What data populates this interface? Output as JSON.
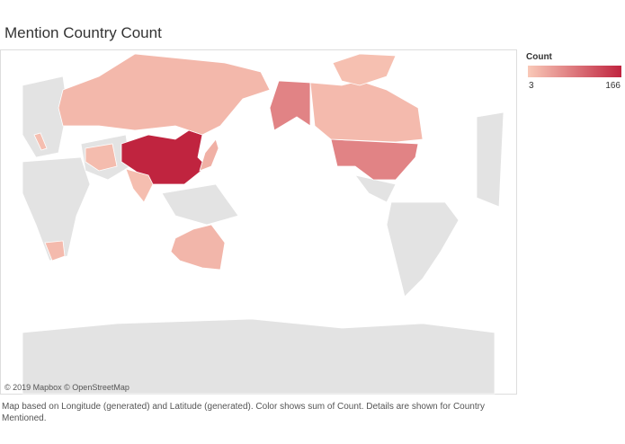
{
  "chart_data": {
    "type": "map",
    "title": "Mention Country Count",
    "legend": {
      "title": "Count",
      "min": 3,
      "max": 166,
      "low_color": "#f9c9b8",
      "high_color": "#c0243f"
    },
    "values": [
      166,
      72,
      72,
      20,
      18,
      22,
      28,
      14,
      18,
      14,
      12,
      16
    ],
    "attribution": "© 2019 Mapbox © OpenStreetMap",
    "caption": "Map based on Longitude (generated) and Latitude (generated).  Color shows sum of Count.  Details are shown for Country Mentioned."
  }
}
